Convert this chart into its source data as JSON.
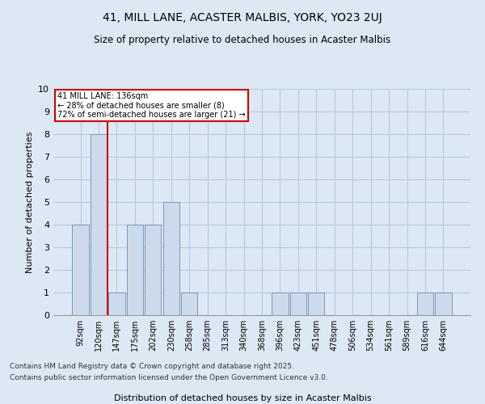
{
  "title1": "41, MILL LANE, ACASTER MALBIS, YORK, YO23 2UJ",
  "title2": "Size of property relative to detached houses in Acaster Malbis",
  "xlabel": "Distribution of detached houses by size in Acaster Malbis",
  "ylabel": "Number of detached properties",
  "categories": [
    "92sqm",
    "120sqm",
    "147sqm",
    "175sqm",
    "202sqm",
    "230sqm",
    "258sqm",
    "285sqm",
    "313sqm",
    "340sqm",
    "368sqm",
    "396sqm",
    "423sqm",
    "451sqm",
    "478sqm",
    "506sqm",
    "534sqm",
    "561sqm",
    "589sqm",
    "616sqm",
    "644sqm"
  ],
  "values": [
    4,
    8,
    1,
    4,
    4,
    5,
    1,
    0,
    0,
    0,
    0,
    1,
    1,
    1,
    0,
    0,
    0,
    0,
    0,
    1,
    1
  ],
  "bar_color": "#ccdaec",
  "bar_edge_color": "#7799bb",
  "grid_color": "#b8c8dc",
  "bg_color": "#dde8f5",
  "vline_color": "#cc0000",
  "annotation_text": "41 MILL LANE: 136sqm\n← 28% of detached houses are smaller (8)\n72% of semi-detached houses are larger (21) →",
  "annotation_box_color": "#cc0000",
  "ylim": [
    0,
    10
  ],
  "yticks": [
    0,
    1,
    2,
    3,
    4,
    5,
    6,
    7,
    8,
    9,
    10
  ],
  "footer1": "Contains HM Land Registry data © Crown copyright and database right 2025.",
  "footer2": "Contains public sector information licensed under the Open Government Licence v3.0."
}
